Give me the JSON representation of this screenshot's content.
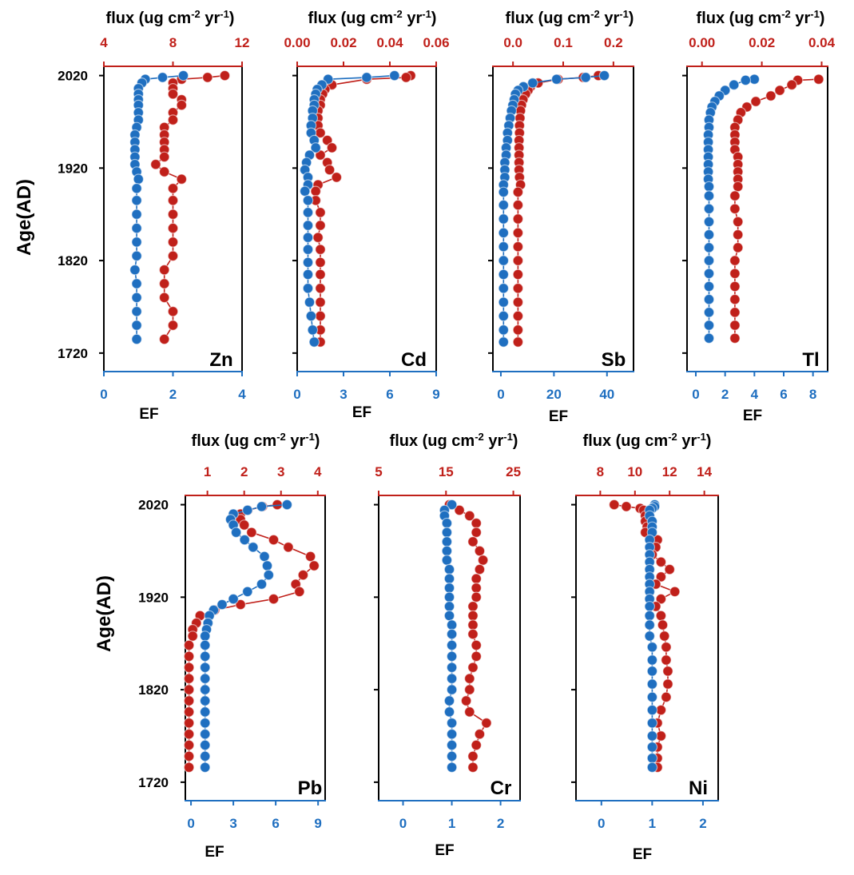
{
  "colors": {
    "flux": "#c0201a",
    "ef": "#1f6fc0",
    "axis": "#000000"
  },
  "labels": {
    "top_axis_title": "flux (ug cm",
    "top_axis_exp": "-2",
    "top_axis_mid": " yr",
    "top_axis_exp2": "-1",
    "top_axis_close": ")",
    "bottom_axis_title": "EF",
    "y_axis_title": "Age(AD)"
  },
  "y_ticks": [
    "2020",
    "1920",
    "1820",
    "1720"
  ],
  "chart_data": [
    {
      "type": "scatter",
      "element": "Zn",
      "ylim": [
        1700,
        2030
      ],
      "ages": [
        2020,
        2018,
        2016,
        2012,
        2006,
        2000,
        1994,
        1988,
        1980,
        1972,
        1964,
        1956,
        1948,
        1940,
        1932,
        1924,
        1916,
        1908,
        1898,
        1885,
        1870,
        1855,
        1840,
        1825,
        1810,
        1795,
        1780,
        1765,
        1750,
        1735
      ],
      "flux_axis": {
        "ticks": [
          "4",
          "8",
          "12"
        ],
        "min": 4,
        "max": 12,
        "label": "flux"
      },
      "ef_axis": {
        "ticks": [
          "0",
          "2",
          "4"
        ],
        "min": 0,
        "max": 4,
        "label": "EF"
      },
      "flux": [
        11.0,
        10.0,
        8.5,
        8.0,
        8.0,
        8.0,
        8.5,
        8.5,
        8.0,
        8.0,
        7.5,
        7.5,
        7.5,
        7.5,
        7.5,
        7.0,
        7.5,
        8.5,
        8.0,
        8.0,
        8.0,
        8.0,
        8.0,
        8.0,
        7.5,
        7.5,
        7.5,
        8.0,
        8.0,
        7.5
      ],
      "ef": [
        2.3,
        1.7,
        1.2,
        1.1,
        1.0,
        1.0,
        1.0,
        1.0,
        1.0,
        1.0,
        0.95,
        0.9,
        0.9,
        0.9,
        0.9,
        0.9,
        0.95,
        1.0,
        0.95,
        0.95,
        0.95,
        0.95,
        0.95,
        0.95,
        0.9,
        0.95,
        0.95,
        0.95,
        0.95,
        0.95
      ]
    },
    {
      "type": "scatter",
      "element": "Cd",
      "ylim": [
        1700,
        2030
      ],
      "ages": [
        2020,
        2018,
        2016,
        2010,
        2005,
        2000,
        1994,
        1988,
        1982,
        1974,
        1966,
        1958,
        1950,
        1942,
        1934,
        1926,
        1918,
        1910,
        1902,
        1895,
        1885,
        1872,
        1858,
        1845,
        1832,
        1818,
        1805,
        1790,
        1775,
        1760,
        1745,
        1732
      ],
      "flux_axis": {
        "ticks": [
          "0.00",
          "0.02",
          "0.04",
          "0.06"
        ],
        "min": 0,
        "max": 0.06,
        "label": "flux"
      },
      "ef_axis": {
        "ticks": [
          "0",
          "3",
          "6",
          "9"
        ],
        "min": 0,
        "max": 9,
        "label": "EF"
      },
      "flux": [
        0.049,
        0.047,
        0.03,
        0.015,
        0.012,
        0.011,
        0.01,
        0.01,
        0.009,
        0.009,
        0.009,
        0.01,
        0.013,
        0.015,
        0.01,
        0.013,
        0.014,
        0.017,
        0.009,
        0.008,
        0.008,
        0.01,
        0.01,
        0.009,
        0.01,
        0.01,
        0.01,
        0.01,
        0.01,
        0.01,
        0.01,
        0.01
      ],
      "ef": [
        6.3,
        4.5,
        2.0,
        1.6,
        1.3,
        1.2,
        1.1,
        1.1,
        1.0,
        1.0,
        0.9,
        0.9,
        1.1,
        1.2,
        0.8,
        0.6,
        0.5,
        0.7,
        0.7,
        0.5,
        0.7,
        0.7,
        0.7,
        0.7,
        0.7,
        0.7,
        0.7,
        0.7,
        0.8,
        0.9,
        1.0,
        1.1
      ]
    },
    {
      "type": "scatter",
      "element": "Sb",
      "ylim": [
        1700,
        2030
      ],
      "ages": [
        2020,
        2018,
        2016,
        2012,
        2008,
        2004,
        2000,
        1994,
        1988,
        1982,
        1974,
        1966,
        1958,
        1950,
        1942,
        1934,
        1926,
        1918,
        1910,
        1902,
        1894,
        1880,
        1865,
        1850,
        1835,
        1820,
        1805,
        1790,
        1775,
        1760,
        1745,
        1732
      ],
      "flux_axis": {
        "ticks": [
          "0.0",
          "0.1",
          "0.2"
        ],
        "min": -0.04,
        "max": 0.24,
        "label": "flux"
      },
      "ef_axis": {
        "ticks": [
          "0",
          "20",
          "40"
        ],
        "min": -3,
        "max": 50,
        "label": "EF"
      },
      "flux": [
        0.17,
        0.14,
        0.09,
        0.05,
        0.035,
        0.03,
        0.025,
        0.02,
        0.017,
        0.015,
        0.014,
        0.013,
        0.013,
        0.012,
        0.012,
        0.012,
        0.012,
        0.012,
        0.013,
        0.015,
        0.01,
        0.01,
        0.01,
        0.01,
        0.01,
        0.01,
        0.01,
        0.01,
        0.01,
        0.01,
        0.01,
        0.01
      ],
      "ef": [
        39,
        32,
        21,
        12,
        8.5,
        6.5,
        5.5,
        5.0,
        4.5,
        4.0,
        3.5,
        3.0,
        2.5,
        2.5,
        2.0,
        2.0,
        1.5,
        1.5,
        1.5,
        1.0,
        1.0,
        1.0,
        1.0,
        1.0,
        1.0,
        1.0,
        1.0,
        1.0,
        1.0,
        1.0,
        1.0,
        1.0
      ]
    },
    {
      "type": "scatter",
      "element": "Tl",
      "ylim": [
        1700,
        2030
      ],
      "ages": [
        2016,
        2015,
        2010,
        2004,
        1998,
        1992,
        1986,
        1980,
        1972,
        1964,
        1956,
        1948,
        1940,
        1932,
        1924,
        1916,
        1908,
        1900,
        1890,
        1876,
        1862,
        1848,
        1834,
        1820,
        1806,
        1792,
        1778,
        1764,
        1750,
        1736
      ],
      "flux_axis": {
        "ticks": [
          "0.00",
          "0.02",
          "0.04"
        ],
        "min": -0.005,
        "max": 0.042,
        "label": "flux"
      },
      "ef_axis": {
        "ticks": [
          "0",
          "2",
          "4",
          "6",
          "8"
        ],
        "min": -0.6,
        "max": 9.0,
        "label": "EF"
      },
      "flux": [
        0.039,
        0.032,
        0.03,
        0.026,
        0.023,
        0.018,
        0.015,
        0.013,
        0.012,
        0.011,
        0.011,
        0.011,
        0.011,
        0.012,
        0.012,
        0.012,
        0.012,
        0.012,
        0.011,
        0.011,
        0.012,
        0.012,
        0.012,
        0.011,
        0.011,
        0.011,
        0.011,
        0.011,
        0.011,
        0.011
      ],
      "ef": [
        4.0,
        3.4,
        2.6,
        2.0,
        1.6,
        1.3,
        1.1,
        1.0,
        0.9,
        0.9,
        0.85,
        0.85,
        0.85,
        0.85,
        0.85,
        0.85,
        0.85,
        0.9,
        0.9,
        0.9,
        0.9,
        0.9,
        0.9,
        0.9,
        0.9,
        0.9,
        0.9,
        0.9,
        0.9,
        0.9
      ]
    },
    {
      "type": "scatter",
      "element": "Pb",
      "ylim": [
        1700,
        2030
      ],
      "ages": [
        2020,
        2018,
        2014,
        2010,
        2004,
        1998,
        1990,
        1982,
        1974,
        1964,
        1954,
        1944,
        1934,
        1926,
        1918,
        1912,
        1906,
        1900,
        1892,
        1885,
        1878,
        1868,
        1856,
        1844,
        1832,
        1820,
        1808,
        1796,
        1784,
        1772,
        1760,
        1748,
        1736
      ],
      "flux_axis": {
        "ticks": [
          "1",
          "2",
          "3",
          "4"
        ],
        "min": 0.4,
        "max": 4.2,
        "label": "flux"
      },
      "ef_axis": {
        "ticks": [
          "0",
          "3",
          "6",
          "9"
        ],
        "min": -0.4,
        "max": 9.5,
        "label": "EF"
      },
      "flux": [
        2.9,
        2.5,
        2.1,
        1.9,
        1.9,
        2.0,
        2.2,
        2.8,
        3.2,
        3.8,
        3.9,
        3.6,
        3.4,
        3.5,
        2.8,
        1.9,
        1.2,
        0.8,
        0.7,
        0.6,
        0.6,
        0.5,
        0.5,
        0.5,
        0.5,
        0.5,
        0.5,
        0.5,
        0.5,
        0.5,
        0.5,
        0.5,
        0.5
      ],
      "ef": [
        6.8,
        5.0,
        4.0,
        3.0,
        2.8,
        3.0,
        3.2,
        3.8,
        4.4,
        5.2,
        5.4,
        5.5,
        5.0,
        4.0,
        3.0,
        2.2,
        1.6,
        1.3,
        1.2,
        1.1,
        1.0,
        1.0,
        1.0,
        1.0,
        1.0,
        1.0,
        1.0,
        1.0,
        1.0,
        1.0,
        1.0,
        1.0,
        1.0
      ]
    },
    {
      "type": "scatter",
      "element": "Cr",
      "ylim": [
        1700,
        2030
      ],
      "ages": [
        2020,
        2014,
        2008,
        2000,
        1990,
        1980,
        1970,
        1960,
        1950,
        1940,
        1930,
        1920,
        1910,
        1900,
        1890,
        1880,
        1868,
        1856,
        1844,
        1832,
        1820,
        1808,
        1796,
        1784,
        1772,
        1760,
        1748,
        1736
      ],
      "flux_axis": {
        "ticks": [
          "5",
          "15",
          "25"
        ],
        "min": 5,
        "max": 26,
        "label": "flux"
      },
      "ef_axis": {
        "ticks": [
          "0",
          "1",
          "2"
        ],
        "min": -0.5,
        "max": 2.4,
        "label": "EF"
      },
      "flux": [
        15.5,
        17.0,
        18.5,
        19.5,
        19.5,
        19.0,
        20.0,
        20.5,
        20.0,
        19.5,
        19.5,
        19.5,
        19.0,
        19.0,
        19.0,
        19.0,
        19.5,
        19.5,
        19.0,
        18.5,
        18.5,
        18.0,
        18.5,
        21.0,
        20.0,
        19.5,
        19.0,
        19.0
      ],
      "ef": [
        1.0,
        0.85,
        0.85,
        0.9,
        0.9,
        0.9,
        0.9,
        0.9,
        0.95,
        0.95,
        0.95,
        0.95,
        0.95,
        0.95,
        1.0,
        1.0,
        1.0,
        1.0,
        1.0,
        1.0,
        1.0,
        0.95,
        0.95,
        1.0,
        1.0,
        1.0,
        1.0,
        1.0
      ]
    },
    {
      "type": "scatter",
      "element": "Ni",
      "ylim": [
        1700,
        2030
      ],
      "ages": [
        2020,
        2018,
        2016,
        2014,
        2008,
        2002,
        1996,
        1990,
        1982,
        1974,
        1966,
        1958,
        1950,
        1942,
        1934,
        1926,
        1918,
        1910,
        1900,
        1890,
        1878,
        1866,
        1852,
        1840,
        1826,
        1812,
        1798,
        1784,
        1770,
        1758,
        1746,
        1736
      ],
      "flux_axis": {
        "ticks": [
          "8",
          "10",
          "12",
          "14"
        ],
        "min": 6.6,
        "max": 14.8,
        "label": "flux"
      },
      "ef_axis": {
        "ticks": [
          "0",
          "1",
          "2"
        ],
        "min": -0.5,
        "max": 2.3,
        "label": "EF"
      },
      "flux": [
        8.8,
        9.5,
        10.3,
        10.5,
        10.6,
        10.6,
        10.7,
        10.6,
        11.3,
        11.2,
        11.0,
        11.5,
        12.0,
        11.5,
        11.2,
        12.3,
        11.5,
        11.2,
        11.5,
        11.6,
        11.7,
        11.8,
        11.8,
        11.9,
        11.9,
        11.8,
        11.5,
        11.3,
        11.5,
        11.3,
        11.3,
        11.3
      ],
      "ef": [
        1.05,
        1.05,
        1.0,
        0.95,
        0.95,
        1.0,
        1.0,
        1.0,
        0.95,
        0.95,
        0.95,
        0.95,
        0.95,
        0.95,
        0.95,
        0.95,
        0.95,
        0.95,
        0.95,
        0.95,
        0.95,
        1.0,
        1.0,
        1.0,
        1.0,
        1.0,
        1.0,
        1.0,
        1.0,
        1.0,
        1.0,
        1.0
      ]
    }
  ]
}
